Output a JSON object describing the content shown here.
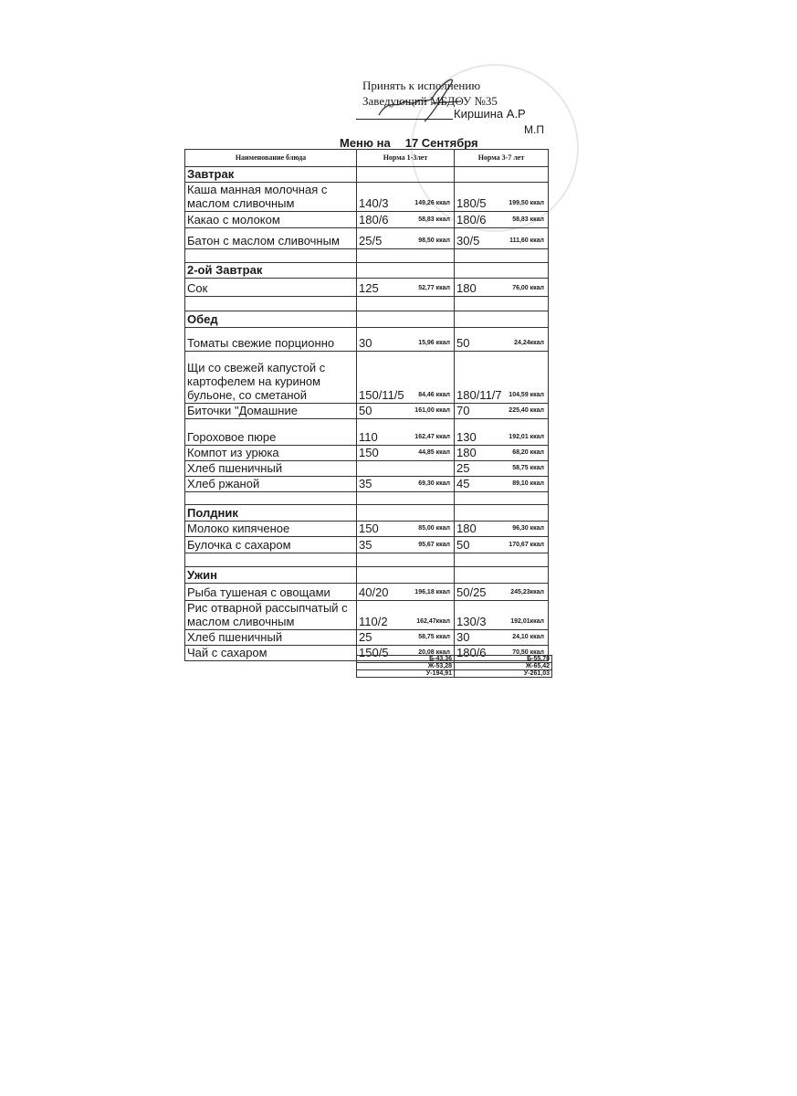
{
  "approval": {
    "line1": "Принять к исполнению",
    "line2": "Заведующий МБДОУ №35",
    "director": "Киршина А.Р",
    "seal": "М.П"
  },
  "title": {
    "prefix": "Меню на",
    "date": "17 Сентября"
  },
  "headers": [
    "Наименование блюда",
    "Норма 1-3лет",
    "Норма 3-7 лет"
  ],
  "rows": [
    {
      "type": "section",
      "name": "Завтрак"
    },
    {
      "name": "Каша манная молочная с маслом сливочным",
      "n1": "140/3",
      "k1": "149,26 ккал",
      "n2": "180/5",
      "k2": "199,50 ккал"
    },
    {
      "name": "Какао с молоком",
      "n1": "180/6",
      "k1": "58,83 ккал",
      "n2": "180/6",
      "k2": "58,83 ккал"
    },
    {
      "name": "Батон с маслом сливочным",
      "n1": "25/5",
      "k1": "98,50 ккал",
      "n2": "30/5",
      "k2": "111,60 ккал"
    },
    {
      "type": "empty"
    },
    {
      "type": "section",
      "name": "2-ой Завтрак"
    },
    {
      "name": "Сок",
      "n1": "125",
      "k1": "52,77 ккал",
      "n2": "180",
      "k2": "76,00 ккал"
    },
    {
      "type": "empty"
    },
    {
      "type": "section",
      "name": "Обед"
    },
    {
      "name": "Томаты свежие порционно",
      "n1": "30",
      "k1": "15,96 ккал",
      "n2": "50",
      "k2": "24,24ккал"
    },
    {
      "name": "Щи со свежей капустой с картофелем на курином бульоне, со сметаной",
      "n1": "150/11/5",
      "k1": "84,46 ккал",
      "n2": "180/11/7",
      "k2": "104,59 ккал"
    },
    {
      "name": "Биточки \"Домашние",
      "n1": "50",
      "k1": "161,00 ккал",
      "n2": "70",
      "k2": "225,40 ккал"
    },
    {
      "name": "Гороховое пюре",
      "n1": "110",
      "k1": "162,47 ккал",
      "n2": "130",
      "k2": "192,01 ккал"
    },
    {
      "name": "Компот из урюка",
      "n1": "150",
      "k1": "44,85 ккал",
      "n2": "180",
      "k2": "68,20 ккал"
    },
    {
      "name": "Хлеб пшеничный",
      "n1": "",
      "k1": "",
      "n2": "25",
      "k2": "58,75 ккал"
    },
    {
      "name": "Хлеб ржаной",
      "n1": "35",
      "k1": "69,30 ккал",
      "n2": "45",
      "k2": "89,10 ккал"
    },
    {
      "type": "empty"
    },
    {
      "type": "section",
      "name": "Полдник"
    },
    {
      "name": "Молоко кипяченое",
      "n1": "150",
      "k1": "85,00 ккал",
      "n2": "180",
      "k2": "96,30 ккал"
    },
    {
      "name": "Булочка с сахаром",
      "n1": "35",
      "k1": "95,67 ккал",
      "n2": "50",
      "k2": "170,67 ккал"
    },
    {
      "type": "empty"
    },
    {
      "type": "section",
      "name": "Ужин"
    },
    {
      "name": "Рыба тушеная с овощами",
      "n1": "40/20",
      "k1": "196,18 ккал",
      "n2": "50/25",
      "k2": "245,23ккал"
    },
    {
      "name": "Рис отварной рассыпчатый с маслом сливочным",
      "n1": "110/2",
      "k1": "162,47ккал",
      "n2": "130/3",
      "k2": "192,01ккал"
    },
    {
      "name": "Хлеб пшеничный",
      "n1": "25",
      "k1": "58,75 ккал",
      "n2": "30",
      "k2": "24,10 ккал"
    },
    {
      "name": "Чай с сахаром",
      "n1": "150/5",
      "k1": "20,08 ккал",
      "n2": "180/6",
      "k2": "70,50 ккал"
    }
  ],
  "totals": [
    [
      "Б-43,36",
      "Б-55,78"
    ],
    [
      "Ж-53,28",
      "Ж-65,42"
    ],
    [
      "У-194,91",
      "У-261,03"
    ]
  ]
}
